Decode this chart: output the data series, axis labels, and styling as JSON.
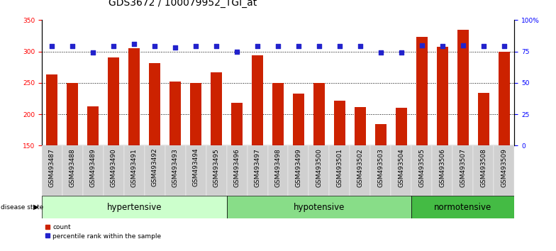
{
  "title": "GDS3672 / 100079952_TGI_at",
  "samples": [
    "GSM493487",
    "GSM493488",
    "GSM493489",
    "GSM493490",
    "GSM493491",
    "GSM493492",
    "GSM493493",
    "GSM493494",
    "GSM493495",
    "GSM493496",
    "GSM493497",
    "GSM493498",
    "GSM493499",
    "GSM493500",
    "GSM493501",
    "GSM493502",
    "GSM493503",
    "GSM493504",
    "GSM493505",
    "GSM493506",
    "GSM493507",
    "GSM493508",
    "GSM493509"
  ],
  "bar_values": [
    263,
    250,
    212,
    291,
    305,
    281,
    252,
    250,
    267,
    218,
    294,
    250,
    233,
    250,
    222,
    211,
    184,
    210,
    323,
    307,
    335,
    234,
    300
  ],
  "percentile_values": [
    79,
    79,
    74,
    79,
    81,
    79,
    78,
    79,
    79,
    75,
    79,
    79,
    79,
    79,
    79,
    79,
    74,
    74,
    80,
    79,
    80,
    79,
    79
  ],
  "bar_color": "#cc2200",
  "dot_color": "#2222cc",
  "groups": [
    {
      "label": "hypertensive",
      "start": 0,
      "end": 9,
      "color": "#ccffcc"
    },
    {
      "label": "hypotensive",
      "start": 9,
      "end": 18,
      "color": "#88dd88"
    },
    {
      "label": "normotensive",
      "start": 18,
      "end": 23,
      "color": "#44bb44"
    }
  ],
  "ylim_left": [
    150,
    350
  ],
  "ylim_right": [
    0,
    100
  ],
  "yticks_left": [
    150,
    200,
    250,
    300,
    350
  ],
  "yticks_right": [
    0,
    25,
    50,
    75,
    100
  ],
  "yticklabels_right": [
    "0",
    "25",
    "50",
    "75",
    "100%"
  ],
  "grid_values": [
    200,
    250,
    300
  ],
  "legend_items": [
    {
      "label": "count",
      "color": "#cc2200"
    },
    {
      "label": "percentile rank within the sample",
      "color": "#2222cc"
    }
  ],
  "bar_width": 0.55,
  "dot_size": 18,
  "title_fontsize": 10,
  "tick_fontsize": 6.5,
  "group_label_fontsize": 8.5
}
